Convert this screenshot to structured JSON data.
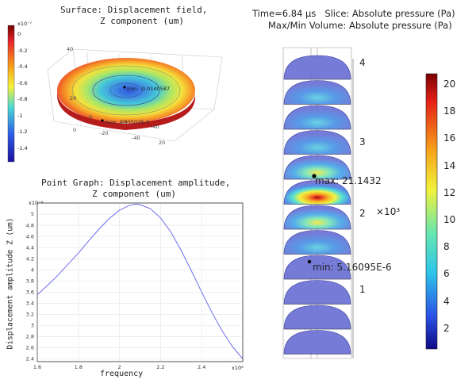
{
  "surface_plot": {
    "title_line1": "Surface: Displacement field,",
    "title_line2": "Z component (um)",
    "colorbar_exponent": "x10⁻⁷",
    "colorbar_ticks": [
      "0",
      "-0.2",
      "-0.4",
      "-0.6",
      "-0.8",
      "-1",
      "-1.2",
      "-1.4"
    ],
    "min_label": "min: -0.0140587",
    "max_label": "max: 1.83502E-4",
    "axis_ticks": [
      "40",
      "20",
      "0",
      "-20",
      "-40",
      "20",
      "0",
      "-20",
      "-40"
    ]
  },
  "point_graph": {
    "title_line1": "Point Graph: Displacement amplitude,",
    "title_line2": "Z component (um)",
    "ylabel": "Displacement amplitude Z (um)",
    "xlabel": "frequency",
    "y_exponent": "x10⁻⁴",
    "x_exponent": "x10⁶"
  },
  "chart_data": {
    "type": "line",
    "title": "Point Graph: Displacement amplitude, Z component (um)",
    "xlabel": "frequency",
    "ylabel": "Displacement amplitude Z (um)",
    "x_scale_note": "x10^6",
    "y_scale_note": "x10^-4",
    "xlim": [
      1.6,
      2.6
    ],
    "ylim": [
      2.35,
      5.2
    ],
    "x_ticks": [
      "1.6",
      "1.8",
      "2",
      "2.2",
      "2.4"
    ],
    "y_ticks": [
      "2.4",
      "2.6",
      "2.8",
      "3",
      "3.2",
      "3.4",
      "3.6",
      "3.8",
      "4",
      "4.2",
      "4.4",
      "4.6",
      "4.8",
      "5"
    ],
    "grid": true,
    "series": [
      {
        "color": "#6d6df0",
        "x": [
          1.6,
          1.65,
          1.7,
          1.75,
          1.8,
          1.85,
          1.9,
          1.95,
          2.0,
          2.05,
          2.08,
          2.1,
          2.15,
          2.2,
          2.25,
          2.3,
          2.35,
          2.4,
          2.45,
          2.5,
          2.55,
          2.6
        ],
        "y": [
          3.55,
          3.72,
          3.9,
          4.1,
          4.3,
          4.52,
          4.73,
          4.92,
          5.07,
          5.16,
          5.18,
          5.17,
          5.1,
          4.93,
          4.68,
          4.35,
          3.98,
          3.6,
          3.23,
          2.9,
          2.62,
          2.4
        ]
      }
    ]
  },
  "slice_plot": {
    "header_line1": "Time=6.84 µs   Slice: Absolute pressure (Pa)",
    "header_line2": "Max/Min Volume: Absolute pressure (Pa)",
    "max_label": "max: 21.1432",
    "min_label": "min: 5.16095E-6",
    "axis_ticks": [
      "4",
      "3",
      "2",
      "1"
    ],
    "axis_exponent": "×10³",
    "colorbar_ticks": [
      "20",
      "18",
      "16",
      "14",
      "12",
      "10",
      "8",
      "6",
      "4",
      "2"
    ],
    "slice_count": 12,
    "hot_slice_index": 5
  },
  "colors": {
    "slice_fill": "#6f74d6",
    "slice_dark": "#2f3390",
    "line_color": "#6d6df0"
  }
}
